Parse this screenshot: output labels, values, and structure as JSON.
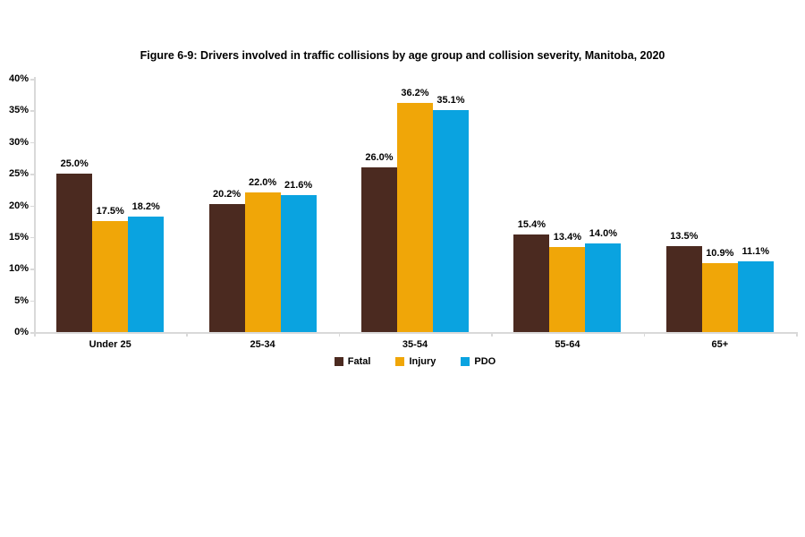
{
  "page": {
    "background_color": "#ffffff"
  },
  "chart_data": {
    "type": "bar",
    "title": "Figure 6-9: Drivers involved in traffic collisions by age group and collision severity, Manitoba, 2020",
    "categories": [
      "Under 25",
      "25-34",
      "35-54",
      "55-64",
      "65+"
    ],
    "series": [
      {
        "name": "Fatal",
        "color": "#4b2a20",
        "values": [
          25.0,
          20.2,
          26.0,
          15.4,
          13.5
        ],
        "labels": [
          "25.0%",
          "20.2%",
          "26.0%",
          "15.4%",
          "13.5%"
        ]
      },
      {
        "name": "Injury",
        "color": "#f0a608",
        "values": [
          17.5,
          22.0,
          36.2,
          13.4,
          10.9
        ],
        "labels": [
          "17.5%",
          "22.0%",
          "36.2%",
          "13.4%",
          "10.9%"
        ]
      },
      {
        "name": "PDO",
        "color": "#0aa3e0",
        "values": [
          18.2,
          21.6,
          35.1,
          14.0,
          11.1
        ],
        "labels": [
          "18.2%",
          "21.6%",
          "35.1%",
          "14.0%",
          "11.1%"
        ]
      }
    ],
    "xlabel": "",
    "ylabel": "",
    "ylim": [
      0,
      40
    ],
    "y_tick_step": 5,
    "y_tick_labels": [
      "0%",
      "5%",
      "10%",
      "15%",
      "20%",
      "25%",
      "30%",
      "35%",
      "40%"
    ],
    "data_labels_shown": true,
    "grid": false,
    "legend_position": "bottom",
    "axis_color": "#d9d9d9",
    "text_color": "#000000"
  }
}
